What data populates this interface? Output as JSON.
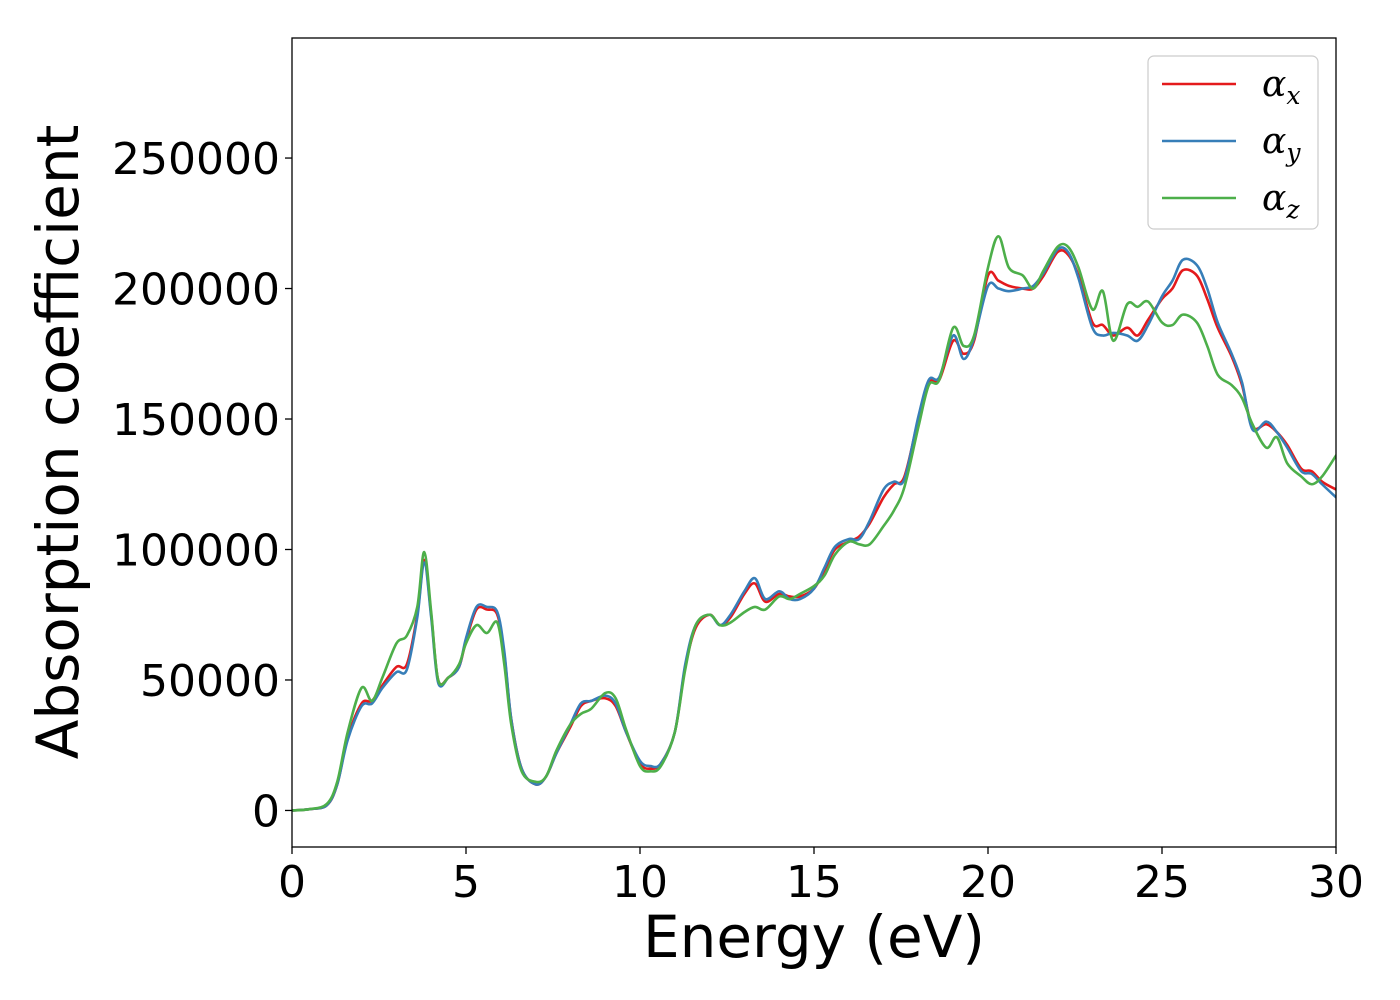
{
  "chart_data": {
    "type": "line",
    "title": "",
    "xlabel": "Energy (eV)",
    "ylabel": "Absorption coefficient",
    "xlim": [
      0,
      30
    ],
    "ylim": [
      -14000,
      296000
    ],
    "xticks": [
      0,
      5,
      10,
      15,
      20,
      25,
      30
    ],
    "xtick_labels": [
      "0",
      "5",
      "10",
      "15",
      "20",
      "25",
      "30"
    ],
    "yticks": [
      0,
      50000,
      100000,
      150000,
      200000,
      250000
    ],
    "ytick_labels": [
      "0",
      "50000",
      "100000",
      "150000",
      "200000",
      "250000"
    ],
    "grid": false,
    "legend_position": "top-right",
    "x": [
      0,
      0.5,
      1,
      1.3,
      1.6,
      2,
      2.3,
      2.6,
      3,
      3.3,
      3.6,
      3.8,
      4,
      4.2,
      4.5,
      4.8,
      5,
      5.3,
      5.6,
      5.9,
      6.1,
      6.3,
      6.6,
      7,
      7.3,
      7.6,
      8,
      8.3,
      8.6,
      9,
      9.3,
      9.6,
      10,
      10.3,
      10.6,
      11,
      11.3,
      11.6,
      12,
      12.3,
      12.6,
      13,
      13.3,
      13.6,
      14,
      14.3,
      14.6,
      15,
      15.3,
      15.6,
      16,
      16.3,
      16.6,
      17,
      17.3,
      17.6,
      18,
      18.3,
      18.6,
      19,
      19.3,
      19.6,
      20,
      20.3,
      20.6,
      21,
      21.3,
      21.6,
      22,
      22.3,
      22.6,
      23,
      23.3,
      23.6,
      24,
      24.3,
      24.6,
      25,
      25.3,
      25.6,
      26,
      26.3,
      26.6,
      27,
      27.3,
      27.6,
      28,
      28.3,
      28.6,
      29,
      29.3,
      29.6,
      30
    ],
    "series": [
      {
        "name": "α_x",
        "label_base": "α",
        "label_sub": "x",
        "color": "#e41a1c",
        "values": [
          0,
          500,
          2000,
          10000,
          28000,
          41000,
          42000,
          48000,
          55000,
          56000,
          75000,
          96000,
          75000,
          50000,
          51000,
          55000,
          65000,
          77000,
          77000,
          75000,
          60000,
          35000,
          16000,
          10000,
          13000,
          22000,
          32000,
          40000,
          42000,
          43000,
          40000,
          30000,
          18000,
          16000,
          18000,
          30000,
          55000,
          70000,
          75000,
          71000,
          74000,
          83000,
          87000,
          80000,
          83000,
          82000,
          82000,
          85000,
          92000,
          100000,
          103000,
          105000,
          110000,
          120000,
          125000,
          128000,
          150000,
          164000,
          165000,
          180000,
          175000,
          180000,
          205000,
          203000,
          201000,
          200000,
          200000,
          205000,
          214000,
          213000,
          205000,
          187000,
          186000,
          182000,
          185000,
          182000,
          188000,
          196000,
          200000,
          207000,
          205000,
          196000,
          185000,
          174000,
          163000,
          147000,
          148000,
          145000,
          140000,
          131000,
          130000,
          126000,
          123000
        ]
      },
      {
        "name": "α_y",
        "label_base": "α",
        "label_sub": "y",
        "color": "#377eb8",
        "values": [
          0,
          500,
          2000,
          10000,
          27000,
          40000,
          41000,
          47000,
          53000,
          54000,
          74000,
          95000,
          74000,
          49000,
          51000,
          55000,
          66000,
          78000,
          78000,
          76000,
          61000,
          35000,
          16000,
          10000,
          13000,
          22000,
          33000,
          41000,
          42000,
          44000,
          41000,
          30000,
          19000,
          17000,
          18000,
          30000,
          56000,
          71000,
          75000,
          71000,
          75000,
          84000,
          89000,
          81000,
          84000,
          81000,
          81000,
          85000,
          93000,
          101000,
          104000,
          104000,
          111000,
          123000,
          126000,
          127000,
          151000,
          165000,
          166000,
          182000,
          173000,
          181000,
          201000,
          200000,
          199000,
          200000,
          201000,
          206000,
          215000,
          214000,
          204000,
          185000,
          182000,
          183000,
          182000,
          180000,
          186000,
          197000,
          203000,
          211000,
          209000,
          200000,
          187000,
          175000,
          164000,
          146000,
          149000,
          145000,
          139000,
          130000,
          129000,
          125000,
          120000
        ]
      },
      {
        "name": "α_z",
        "label_base": "α",
        "label_sub": "z",
        "color": "#4daf4a",
        "values": [
          0,
          500,
          2500,
          11000,
          30000,
          47000,
          42000,
          51000,
          64000,
          67000,
          78000,
          99000,
          76000,
          50000,
          51000,
          56000,
          64000,
          71000,
          68000,
          72000,
          56000,
          33000,
          15000,
          11000,
          13000,
          23000,
          33000,
          37000,
          39000,
          45000,
          43000,
          31000,
          17000,
          15000,
          17000,
          30000,
          54000,
          71000,
          75000,
          71000,
          72000,
          76000,
          78000,
          77000,
          82000,
          81000,
          83000,
          86000,
          90000,
          98000,
          103000,
          102000,
          102000,
          109000,
          115000,
          124000,
          147000,
          163000,
          165000,
          185000,
          178000,
          182000,
          208000,
          220000,
          208000,
          205000,
          200000,
          207000,
          216000,
          216000,
          208000,
          192000,
          199000,
          180000,
          194000,
          193000,
          195000,
          187000,
          186000,
          190000,
          187000,
          178000,
          167000,
          163000,
          158000,
          148000,
          139000,
          143000,
          133000,
          128000,
          125000,
          128000,
          136000
        ]
      }
    ]
  }
}
